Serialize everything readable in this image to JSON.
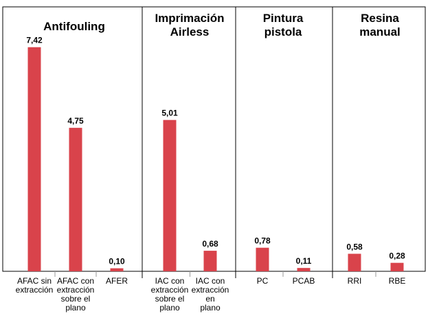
{
  "chart_data": {
    "type": "bar",
    "ylim": [
      0,
      8.3
    ],
    "groups": [
      {
        "title": [
          "Antifouling"
        ],
        "bars": [
          {
            "label": [
              "AFAC sin",
              "extracción"
            ],
            "value": 7.42,
            "value_label": "7,42"
          },
          {
            "label": [
              "AFAC con",
              "extracción",
              "sobre el",
              "plano"
            ],
            "value": 4.75,
            "value_label": "4,75"
          },
          {
            "label": [
              "AFER"
            ],
            "value": 0.1,
            "value_label": "0,10"
          }
        ]
      },
      {
        "title": [
          "Imprimación",
          "Airless"
        ],
        "bars": [
          {
            "label": [
              "IAC con",
              "extracción",
              "sobre el",
              "plano"
            ],
            "value": 5.01,
            "value_label": "5,01"
          },
          {
            "label": [
              "IAC con",
              "extracción",
              "en",
              "plano"
            ],
            "value": 0.68,
            "value_label": "0,68"
          }
        ]
      },
      {
        "title": [
          "Pintura",
          "pistola"
        ],
        "bars": [
          {
            "label": [
              "PC"
            ],
            "value": 0.78,
            "value_label": "0,78"
          },
          {
            "label": [
              "PCAB"
            ],
            "value": 0.11,
            "value_label": "0,11"
          }
        ]
      },
      {
        "title": [
          "Resina",
          "manual"
        ],
        "bars": [
          {
            "label": [
              "RRI"
            ],
            "value": 0.58,
            "value_label": "0,58"
          },
          {
            "label": [
              "RBE"
            ],
            "value": 0.28,
            "value_label": "0,28"
          }
        ]
      }
    ],
    "colors": {
      "bar": "#d9434b",
      "frame": "#000000",
      "tick": "#999999"
    }
  }
}
